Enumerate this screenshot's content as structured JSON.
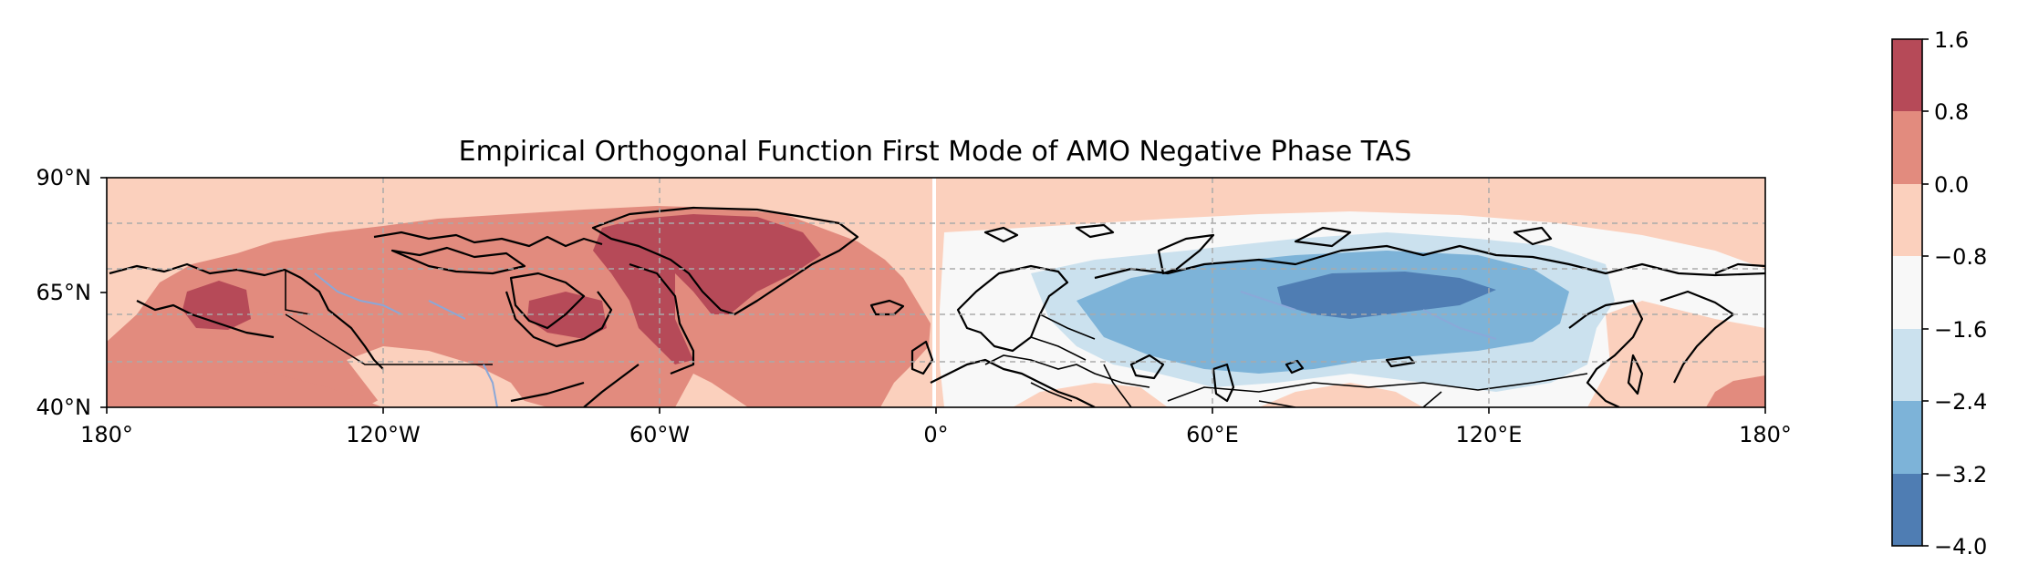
{
  "title": "Empirical Orthogonal Function First Mode of AMO Negative Phase TAS",
  "x_ticks": [
    "180°",
    "120°W",
    "60°W",
    "0°",
    "60°E",
    "120°E",
    "180°"
  ],
  "y_ticks": [
    "40°N",
    "65°N",
    "90°N"
  ],
  "colorbar": {
    "ticks": [
      "1.6",
      "0.8",
      "0.0",
      "−0.8",
      "−1.6",
      "−2.4",
      "−3.2",
      "−4.0"
    ],
    "levels": [
      1.6,
      0.8,
      0.0,
      -0.8,
      -1.6,
      -2.4,
      -3.2,
      -4.0
    ],
    "colors": [
      "#b64a58",
      "#e28b7e",
      "#fbd0bd",
      "#f8f8f8",
      "#cbe1ee",
      "#7db3d8",
      "#4f7db3"
    ]
  },
  "map": {
    "extent_lon": [
      -180,
      180
    ],
    "extent_lat": [
      40,
      90
    ],
    "gridlines": "dashed",
    "colormap": "diverging red-blue"
  }
}
